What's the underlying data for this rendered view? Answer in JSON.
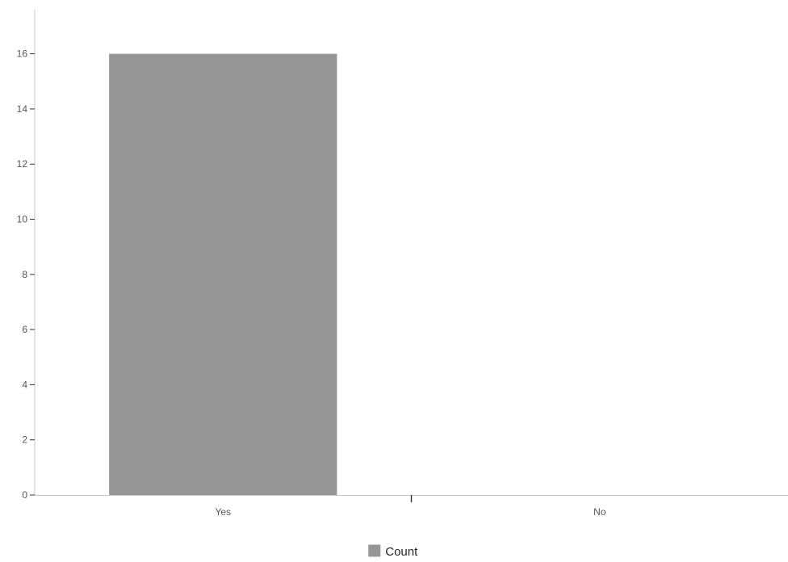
{
  "chart_data": {
    "type": "bar",
    "categories": [
      "Yes",
      "No"
    ],
    "series": [
      {
        "name": "Count",
        "values": [
          16,
          0
        ]
      }
    ],
    "ylim": [
      0,
      17.6
    ],
    "yticks": [
      0,
      2,
      4,
      6,
      8,
      10,
      12,
      14,
      16
    ],
    "grid": false,
    "legend": "bottom-center",
    "title": "",
    "xlabel": "",
    "ylabel": "",
    "colors": {
      "bar": "#969696",
      "axis": "#c8c8c8",
      "tick_text": "#555555",
      "legend_text": "#222222"
    }
  }
}
